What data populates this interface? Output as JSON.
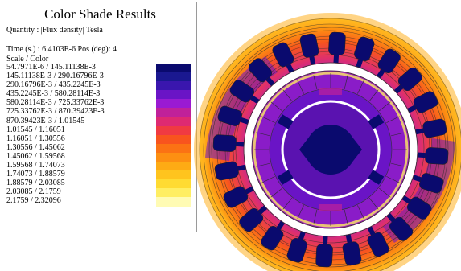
{
  "legend": {
    "title": "Color Shade Results",
    "quantity": "Quantity : |Flux density|  Tesla",
    "time": "Time (s.) : 6.4103E-6 Pos (deg): 4",
    "scale_label": "Scale / Color",
    "rows": [
      {
        "min": "54.7971E-6",
        "max": "145.11138E-3",
        "color": "#0a0a6e"
      },
      {
        "min": "145.11138E-3",
        "max": "290.16796E-3",
        "color": "#1a1890"
      },
      {
        "min": "290.16796E-3",
        "max": "435.2245E-3",
        "color": "#3a16ae"
      },
      {
        "min": "435.2245E-3",
        "max": "580.28114E-3",
        "color": "#6a14c6"
      },
      {
        "min": "580.28114E-3",
        "max": "725.33762E-3",
        "color": "#9a1ad2"
      },
      {
        "min": "725.33762E-3",
        "max": "870.39423E-3",
        "color": "#c0219a"
      },
      {
        "min": "870.39423E-3",
        "max": "1.01545",
        "color": "#de2a72"
      },
      {
        "min": "1.01545",
        "max": "1.16051",
        "color": "#f03a42"
      },
      {
        "min": "1.16051",
        "max": "1.30556",
        "color": "#f8541e"
      },
      {
        "min": "1.30556",
        "max": "1.45062",
        "color": "#fb7214"
      },
      {
        "min": "1.45062",
        "max": "1.59568",
        "color": "#fd8f12"
      },
      {
        "min": "1.59568",
        "max": "1.74073",
        "color": "#feab14"
      },
      {
        "min": "1.74073",
        "max": "1.88579",
        "color": "#ffc41e"
      },
      {
        "min": "1.88579",
        "max": "2.03085",
        "color": "#ffdb32"
      },
      {
        "min": "2.03085",
        "max": "2.1759",
        "color": "#ffee62"
      },
      {
        "min": "2.1759",
        "max": "2.32096",
        "color": "#fffbb4"
      }
    ]
  },
  "colors": {
    "stator_outer": "#ffb020",
    "stator_mid": "#f0502a",
    "stator_dark": "#7a1ab8",
    "slot": "#0a0a6e",
    "gap_ring": "#ffffff",
    "rotor_ring": "#8a1cc8",
    "rotor_inner": "#5a12b0",
    "shaft": "#0a0a6e",
    "line": "#2a2a2a"
  }
}
